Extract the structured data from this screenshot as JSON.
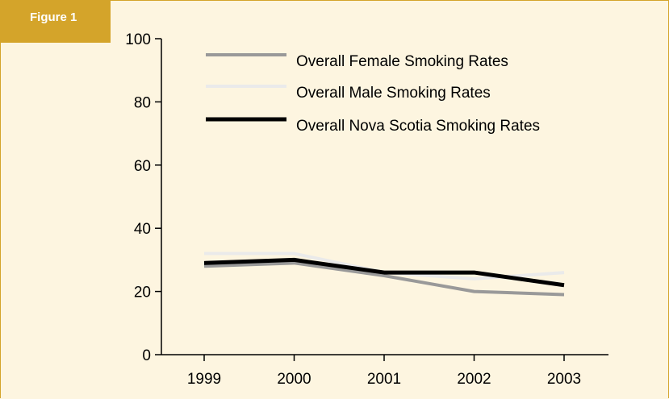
{
  "figure_label": "Figure 1",
  "colors": {
    "background": "#fdf5e0",
    "accent": "#d4a42a",
    "axis": "#000000"
  },
  "chart_data": {
    "type": "line",
    "title": "",
    "xlabel": "",
    "ylabel": "",
    "x": [
      "1999",
      "2000",
      "2001",
      "2002",
      "2003"
    ],
    "ylim": [
      0,
      100
    ],
    "yticks": [
      "0",
      "20",
      "40",
      "60",
      "80",
      "100"
    ],
    "grid": false,
    "legend_position": "top",
    "series": [
      {
        "name": "Overall Female Smoking Rates",
        "color": "#999999",
        "values": [
          28,
          29,
          25,
          20,
          19
        ]
      },
      {
        "name": "Overall Male Smoking Rates",
        "color": "#eaeaea",
        "values": [
          32,
          32,
          26,
          24,
          26
        ]
      },
      {
        "name": "Overall Nova Scotia Smoking Rates",
        "color": "#000000",
        "values": [
          29,
          30,
          26,
          26,
          22
        ]
      }
    ]
  }
}
